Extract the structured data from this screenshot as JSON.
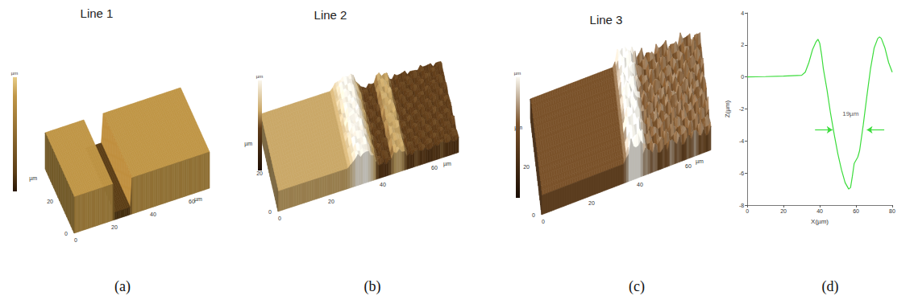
{
  "surface_panels": [
    {
      "title": "Line 1",
      "label": "(a)",
      "unit": "µm",
      "xticks": [
        0,
        20,
        40,
        60
      ],
      "yticks": [
        0,
        20
      ]
    },
    {
      "title": "Line 2",
      "label": "(b)",
      "unit": "µm",
      "xticks": [
        0,
        20,
        40,
        60
      ],
      "yticks": [
        0,
        20
      ]
    },
    {
      "title": "Line 3",
      "label": "(c)",
      "unit": "µm",
      "xticks": [
        0,
        20,
        40,
        60
      ],
      "yticks": [
        0,
        20
      ]
    }
  ],
  "chart_data": {
    "type": "line",
    "label": "(d)",
    "x_label": "X(µm)",
    "y_label": "Z(µm)",
    "x": [
      0,
      10,
      20,
      30,
      32,
      34,
      36,
      38,
      39,
      40,
      41,
      42,
      44,
      46,
      48,
      50,
      52,
      54,
      56,
      57,
      58,
      59,
      60,
      61,
      62,
      64,
      66,
      68,
      70,
      72,
      73,
      74,
      76,
      78,
      80
    ],
    "series": [
      {
        "color": "#3bdc3b",
        "values": [
          0,
          0.02,
          0.05,
          0.1,
          0.3,
          0.9,
          1.7,
          2.2,
          2.35,
          2.1,
          1.4,
          0.5,
          -0.8,
          -2.3,
          -3.6,
          -4.8,
          -5.8,
          -6.6,
          -7.0,
          -6.9,
          -6.2,
          -5.4,
          -5.2,
          -5.0,
          -4.6,
          -3.0,
          -1.2,
          0.5,
          1.8,
          2.4,
          2.5,
          2.4,
          1.8,
          0.9,
          0.3
        ]
      }
    ],
    "xlim": [
      0,
      80
    ],
    "ylim": [
      -8,
      4
    ],
    "xticks": [
      0,
      20,
      40,
      60,
      80
    ],
    "yticks": [
      -8,
      -6,
      -4,
      -2,
      0,
      2,
      4
    ],
    "grid": false,
    "annotations": [
      {
        "text": "19µm",
        "x": 57,
        "y": -2.3
      }
    ],
    "width_marker": {
      "y": -3.3,
      "x_start": 47,
      "x_end": 66
    }
  }
}
